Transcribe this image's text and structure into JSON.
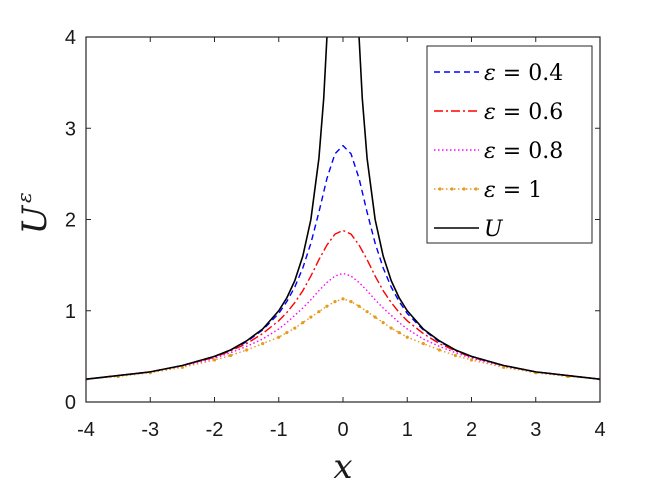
{
  "chart_data": {
    "type": "line",
    "title": "",
    "xlabel": "x",
    "ylabel": {
      "base": "U",
      "sup": "ε"
    },
    "xlim": [
      -4,
      4
    ],
    "ylim": [
      0,
      4
    ],
    "xticks": [
      "-4",
      "-3",
      "-2",
      "-1",
      "0",
      "1",
      "2",
      "3",
      "4"
    ],
    "yticks": [
      "0",
      "1",
      "2",
      "3",
      "4"
    ],
    "grid": false,
    "legend_position": "top-right",
    "series": [
      {
        "name": "ε = 0.4",
        "legend": {
          "sym": "ε",
          "rest": " = 0.4"
        },
        "color": "#0000ff",
        "style": "dashed",
        "x": [
          -4,
          -3.5,
          -3,
          -2.5,
          -2,
          -1.75,
          -1.5,
          -1.25,
          -1,
          -0.875,
          -0.75,
          -0.625,
          -0.5,
          -0.375,
          -0.25,
          -0.125,
          0,
          0.125,
          0.25,
          0.375,
          0.5,
          0.625,
          0.75,
          0.875,
          1,
          1.25,
          1.5,
          1.75,
          2,
          2.5,
          3,
          3.5,
          4
        ],
        "y": [
          0.25,
          0.29,
          0.33,
          0.4,
          0.5,
          0.57,
          0.66,
          0.79,
          0.97,
          1.1,
          1.26,
          1.47,
          1.74,
          2.08,
          2.45,
          2.72,
          2.81,
          2.72,
          2.45,
          2.08,
          1.74,
          1.47,
          1.26,
          1.1,
          0.97,
          0.79,
          0.66,
          0.57,
          0.5,
          0.4,
          0.33,
          0.29,
          0.25
        ]
      },
      {
        "name": "ε = 0.6",
        "legend": {
          "sym": "ε",
          "rest": " = 0.6"
        },
        "color": "#ff0000",
        "style": "dashdot",
        "x": [
          -4,
          -3.5,
          -3,
          -2.5,
          -2,
          -1.75,
          -1.5,
          -1.25,
          -1,
          -0.875,
          -0.75,
          -0.625,
          -0.5,
          -0.375,
          -0.25,
          -0.125,
          0,
          0.125,
          0.25,
          0.375,
          0.5,
          0.625,
          0.75,
          0.875,
          1,
          1.25,
          1.5,
          1.75,
          2,
          2.5,
          3,
          3.5,
          4
        ],
        "y": [
          0.25,
          0.29,
          0.33,
          0.4,
          0.49,
          0.56,
          0.64,
          0.75,
          0.89,
          0.98,
          1.09,
          1.22,
          1.38,
          1.56,
          1.72,
          1.84,
          1.88,
          1.84,
          1.72,
          1.56,
          1.38,
          1.22,
          1.09,
          0.98,
          0.89,
          0.75,
          0.64,
          0.56,
          0.49,
          0.4,
          0.33,
          0.29,
          0.25
        ]
      },
      {
        "name": "ε = 0.8",
        "legend": {
          "sym": "ε",
          "rest": " = 0.8"
        },
        "color": "#ff00ff",
        "style": "dotted",
        "x": [
          -4,
          -3.5,
          -3,
          -2.5,
          -2,
          -1.75,
          -1.5,
          -1.25,
          -1,
          -0.875,
          -0.75,
          -0.625,
          -0.5,
          -0.375,
          -0.25,
          -0.125,
          0,
          0.125,
          0.25,
          0.375,
          0.5,
          0.625,
          0.75,
          0.875,
          1,
          1.25,
          1.5,
          1.75,
          2,
          2.5,
          3,
          3.5,
          4
        ],
        "y": [
          0.25,
          0.29,
          0.33,
          0.39,
          0.48,
          0.54,
          0.61,
          0.69,
          0.8,
          0.87,
          0.95,
          1.03,
          1.12,
          1.22,
          1.31,
          1.38,
          1.41,
          1.38,
          1.31,
          1.22,
          1.12,
          1.03,
          0.95,
          0.87,
          0.8,
          0.69,
          0.61,
          0.54,
          0.48,
          0.39,
          0.33,
          0.29,
          0.25
        ]
      },
      {
        "name": "ε = 1",
        "legend": {
          "sym": "ε",
          "rest": " = 1"
        },
        "color": "#e69a1e",
        "style": "dotted-marker",
        "x": [
          -4,
          -3.5,
          -3,
          -2.5,
          -2,
          -1.75,
          -1.5,
          -1.25,
          -1,
          -0.875,
          -0.75,
          -0.625,
          -0.5,
          -0.375,
          -0.25,
          -0.125,
          0,
          0.125,
          0.25,
          0.375,
          0.5,
          0.625,
          0.75,
          0.875,
          1,
          1.25,
          1.5,
          1.75,
          2,
          2.5,
          3,
          3.5,
          4
        ],
        "y": [
          0.25,
          0.28,
          0.32,
          0.38,
          0.46,
          0.51,
          0.57,
          0.64,
          0.71,
          0.76,
          0.81,
          0.87,
          0.93,
          0.99,
          1.05,
          1.1,
          1.13,
          1.1,
          1.05,
          0.99,
          0.93,
          0.87,
          0.81,
          0.76,
          0.71,
          0.64,
          0.57,
          0.51,
          0.46,
          0.38,
          0.32,
          0.28,
          0.25
        ]
      },
      {
        "name": "U",
        "legend": {
          "sym": "",
          "rest": "U"
        },
        "color": "#000000",
        "style": "solid",
        "x": [
          -4,
          -3.5,
          -3,
          -2.5,
          -2,
          -1.75,
          -1.5,
          -1.25,
          -1,
          -0.875,
          -0.75,
          -0.625,
          -0.5,
          -0.375,
          -0.3,
          -0.25,
          -0.22,
          0.22,
          0.25,
          0.3,
          0.375,
          0.5,
          0.625,
          0.75,
          0.875,
          1,
          1.25,
          1.5,
          1.75,
          2,
          2.5,
          3,
          3.5,
          4
        ],
        "y": [
          0.25,
          0.29,
          0.33,
          0.4,
          0.5,
          0.57,
          0.67,
          0.8,
          1.0,
          1.14,
          1.33,
          1.6,
          2.0,
          2.67,
          3.33,
          4.0,
          4.55,
          4.55,
          4.0,
          3.33,
          2.67,
          2.0,
          1.6,
          1.33,
          1.14,
          1.0,
          0.8,
          0.67,
          0.57,
          0.5,
          0.4,
          0.33,
          0.29,
          0.25
        ]
      }
    ]
  }
}
